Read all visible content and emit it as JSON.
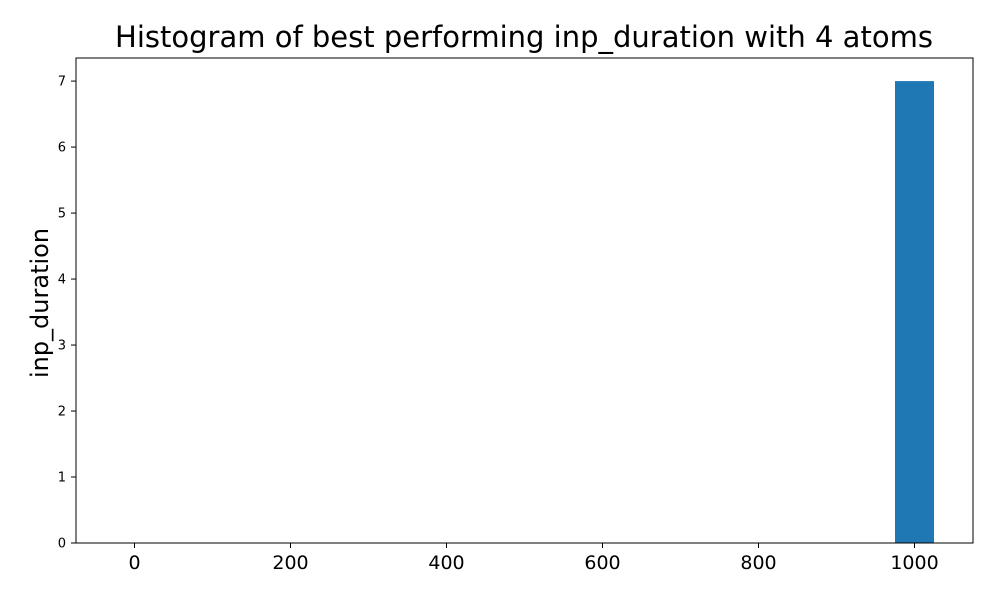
{
  "chart_data": {
    "type": "bar",
    "title": "Histogram of best performing inp_duration with 4 atoms",
    "xlabel": "",
    "ylabel": "inp_duration",
    "xlim": [
      -75,
      1075
    ],
    "ylim": [
      0,
      7.35
    ],
    "x_ticks": [
      0,
      200,
      400,
      600,
      800,
      1000
    ],
    "y_ticks": [
      0,
      1,
      2,
      3,
      4,
      5,
      6,
      7
    ],
    "bars": [
      {
        "x_start": 975,
        "x_end": 1025,
        "value": 7
      }
    ],
    "colors": {
      "bar": "#1f77b4",
      "axes": "#000000"
    },
    "grid": false
  }
}
